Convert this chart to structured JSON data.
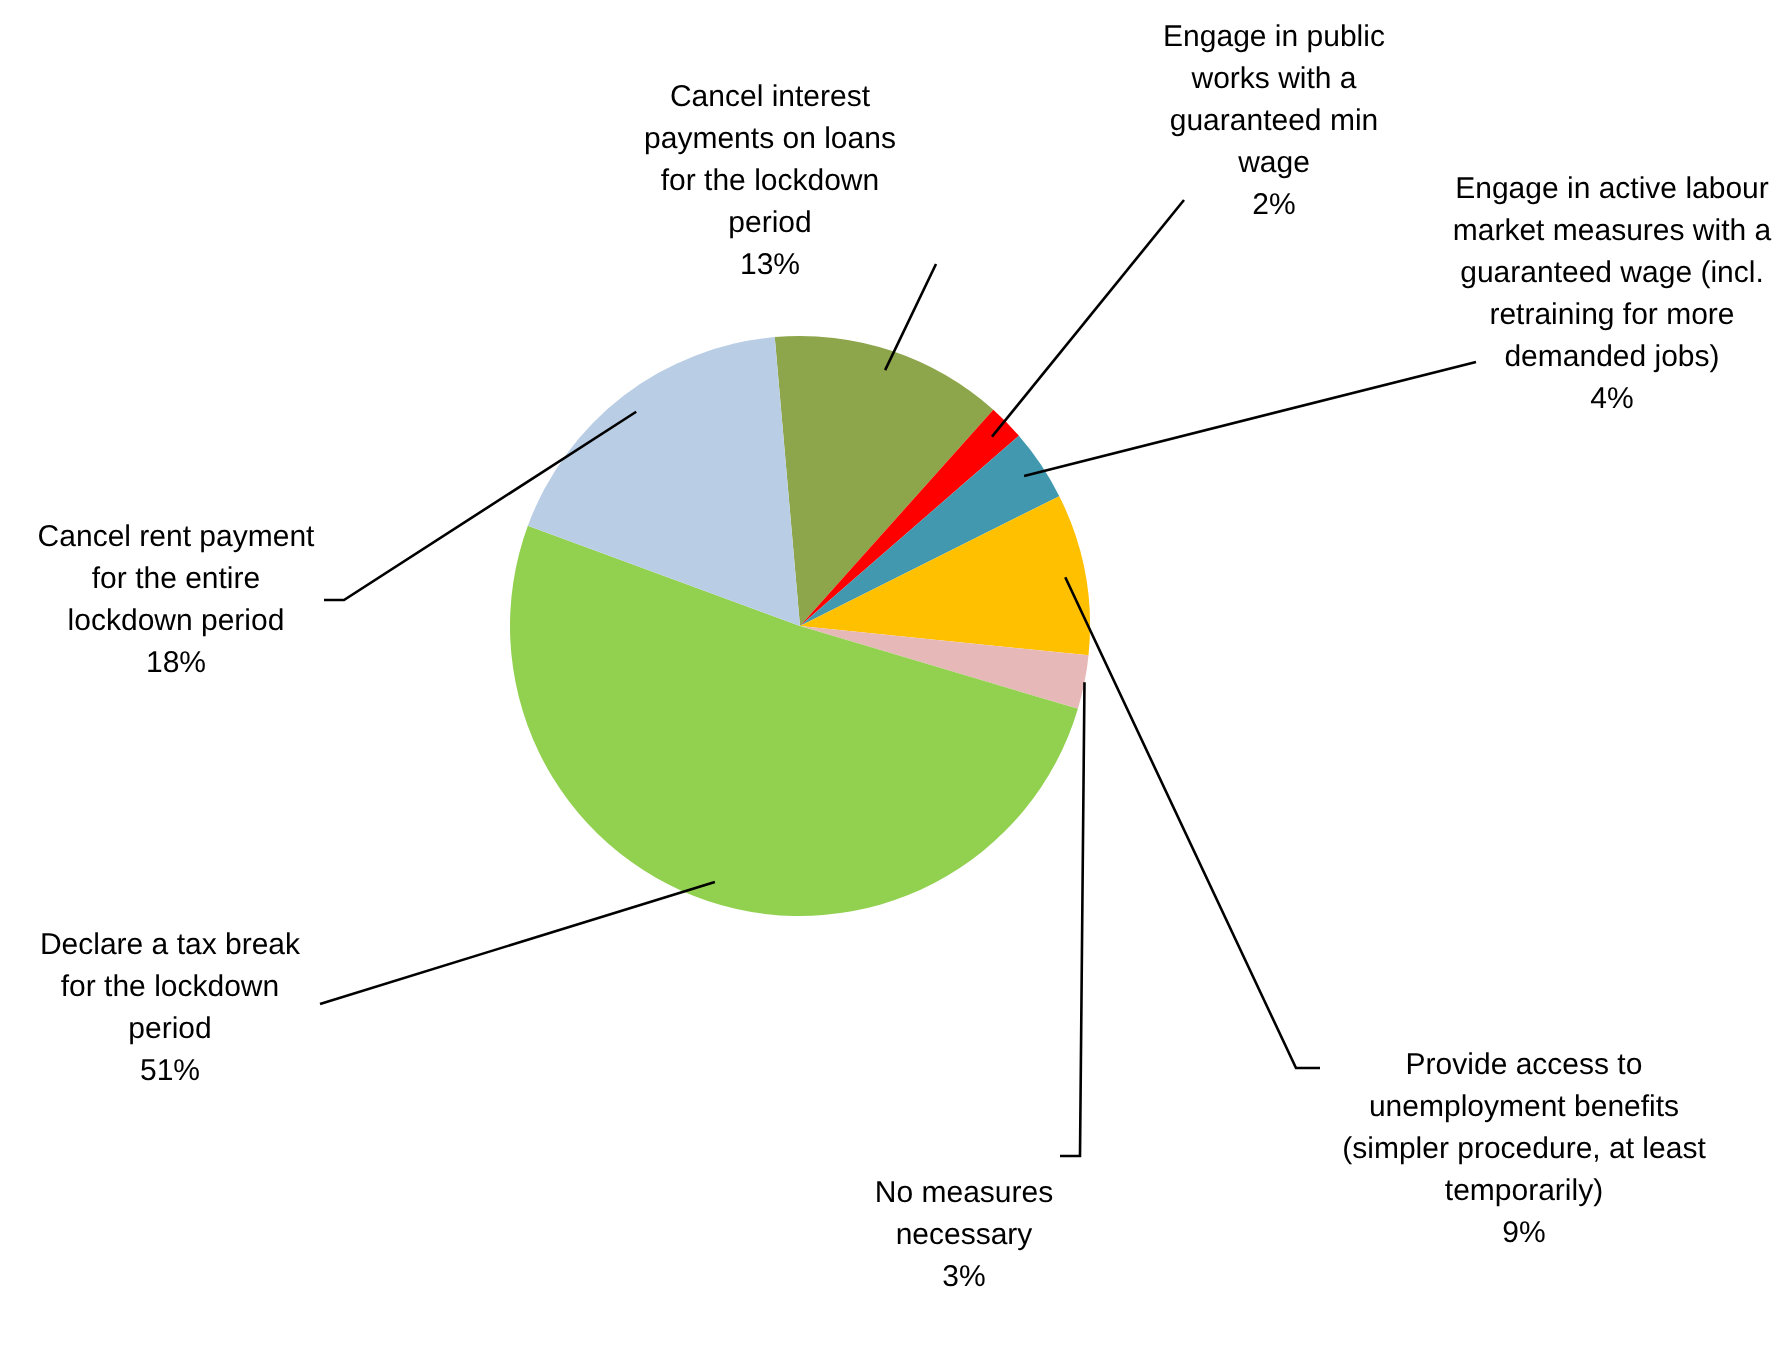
{
  "chart_data": {
    "type": "pie",
    "categories": [
      "Cancel interest payments on loans for the lockdown period",
      "Engage in public works with a guaranteed min wage",
      "Engage in active labour market measures with a guaranteed wage (incl. retraining for more demanded jobs)",
      "Provide access to unemployment benefits (simpler procedure, at least temporarily)",
      "No measures necessary",
      "Declare a tax break for the lockdown period",
      "Cancel rent payment for the entire lockdown period"
    ],
    "values": [
      13,
      2,
      4,
      9,
      3,
      51,
      18
    ],
    "value_labels": [
      "13%",
      "2%",
      "4%",
      "9%",
      "3%",
      "51%",
      "18%"
    ],
    "colors": [
      "#8ea64b",
      "#ff0000",
      "#4198af",
      "#ffc000",
      "#e6b9b8",
      "#92d050",
      "#b9cde5"
    ],
    "legend": false
  }
}
